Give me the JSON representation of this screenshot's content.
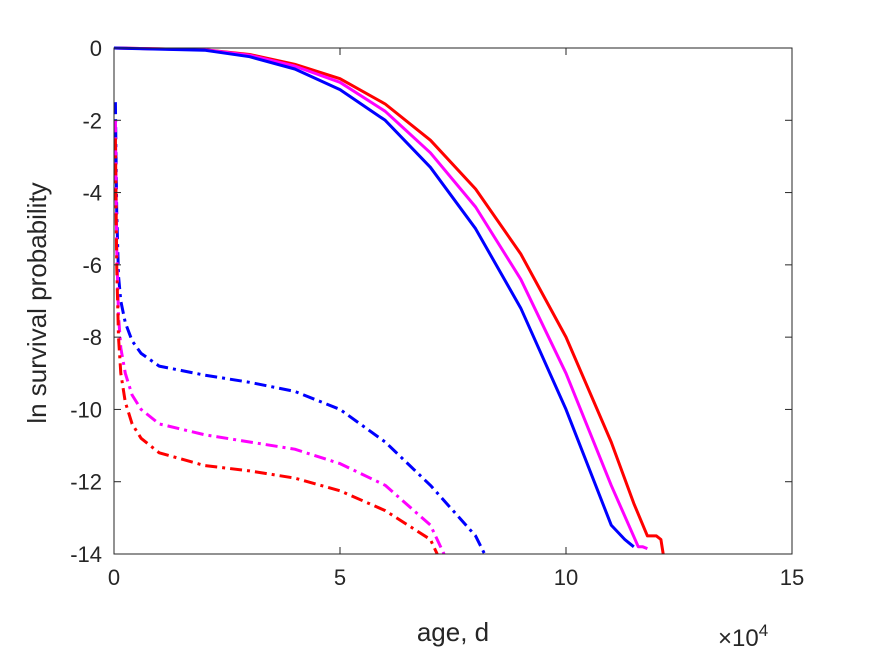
{
  "chart_data": {
    "type": "line",
    "title": "",
    "xlabel": "age, d",
    "ylabel": "ln survival probability",
    "x_exponent_label": {
      "base": "×10",
      "exponent": "4"
    },
    "xlim": [
      0,
      150000
    ],
    "ylim": [
      -14,
      0
    ],
    "x_ticks": [
      0,
      50000,
      100000,
      150000
    ],
    "x_tick_labels": [
      "0",
      "5",
      "10",
      "15"
    ],
    "y_ticks": [
      0,
      -2,
      -4,
      -6,
      -8,
      -10,
      -12,
      -14
    ],
    "y_tick_labels": [
      "0",
      "-2",
      "-4",
      "-6",
      "-8",
      "-10",
      "-12",
      "-14"
    ],
    "grid": false,
    "legend": "none",
    "series": [
      {
        "color": "#ff0000",
        "style": "solid",
        "x": [
          0,
          20000,
          30000,
          40000,
          50000,
          60000,
          70000,
          80000,
          90000,
          100000,
          110000,
          115000,
          118000,
          120000,
          121000,
          121500
        ],
        "y": [
          0,
          -0.05,
          -0.18,
          -0.45,
          -0.85,
          -1.55,
          -2.55,
          -3.9,
          -5.7,
          -8.0,
          -10.9,
          -12.6,
          -13.5,
          -13.5,
          -13.6,
          -14
        ]
      },
      {
        "color": "#ff00ff",
        "style": "solid",
        "x": [
          0,
          20000,
          30000,
          40000,
          50000,
          60000,
          70000,
          80000,
          90000,
          100000,
          110000,
          116000,
          117000,
          118000
        ],
        "y": [
          0,
          -0.05,
          -0.2,
          -0.5,
          -0.95,
          -1.75,
          -2.9,
          -4.4,
          -6.4,
          -9.0,
          -12.1,
          -13.8,
          -13.8,
          -13.85
        ]
      },
      {
        "color": "#0000ff",
        "style": "solid",
        "x": [
          0,
          20000,
          30000,
          40000,
          50000,
          60000,
          70000,
          80000,
          90000,
          100000,
          110000,
          113000,
          114000,
          115000
        ],
        "y": [
          0,
          -0.06,
          -0.24,
          -0.58,
          -1.15,
          -2.0,
          -3.3,
          -5.0,
          -7.2,
          -10.0,
          -13.2,
          -13.6,
          -13.7,
          -13.8
        ]
      },
      {
        "color": "#0000ff",
        "style": "dashdot",
        "x": [
          300,
          600,
          1000,
          1500,
          2500,
          4000,
          6000,
          10000,
          20000,
          30000,
          40000,
          50000,
          60000,
          70000,
          80000,
          82000
        ],
        "y": [
          -1.5,
          -4.5,
          -6.3,
          -7.0,
          -7.6,
          -8.1,
          -8.45,
          -8.8,
          -9.05,
          -9.25,
          -9.5,
          -10.0,
          -10.9,
          -12.1,
          -13.5,
          -14
        ]
      },
      {
        "color": "#ff00ff",
        "style": "dashdot",
        "x": [
          300,
          600,
          1000,
          1500,
          2500,
          4000,
          6000,
          10000,
          20000,
          30000,
          40000,
          50000,
          60000,
          70000,
          73000
        ],
        "y": [
          -2.0,
          -5.5,
          -7.4,
          -8.3,
          -9.0,
          -9.6,
          -10.0,
          -10.4,
          -10.7,
          -10.9,
          -11.1,
          -11.5,
          -12.1,
          -13.2,
          -14
        ]
      },
      {
        "color": "#ff0000",
        "style": "dashdot",
        "x": [
          300,
          600,
          1000,
          1500,
          2500,
          4000,
          6000,
          10000,
          20000,
          30000,
          40000,
          50000,
          60000,
          70000,
          71500
        ],
        "y": [
          -2.5,
          -6.0,
          -8.0,
          -9.0,
          -9.8,
          -10.4,
          -10.8,
          -11.2,
          -11.55,
          -11.7,
          -11.9,
          -12.25,
          -12.8,
          -13.6,
          -14
        ]
      }
    ]
  }
}
